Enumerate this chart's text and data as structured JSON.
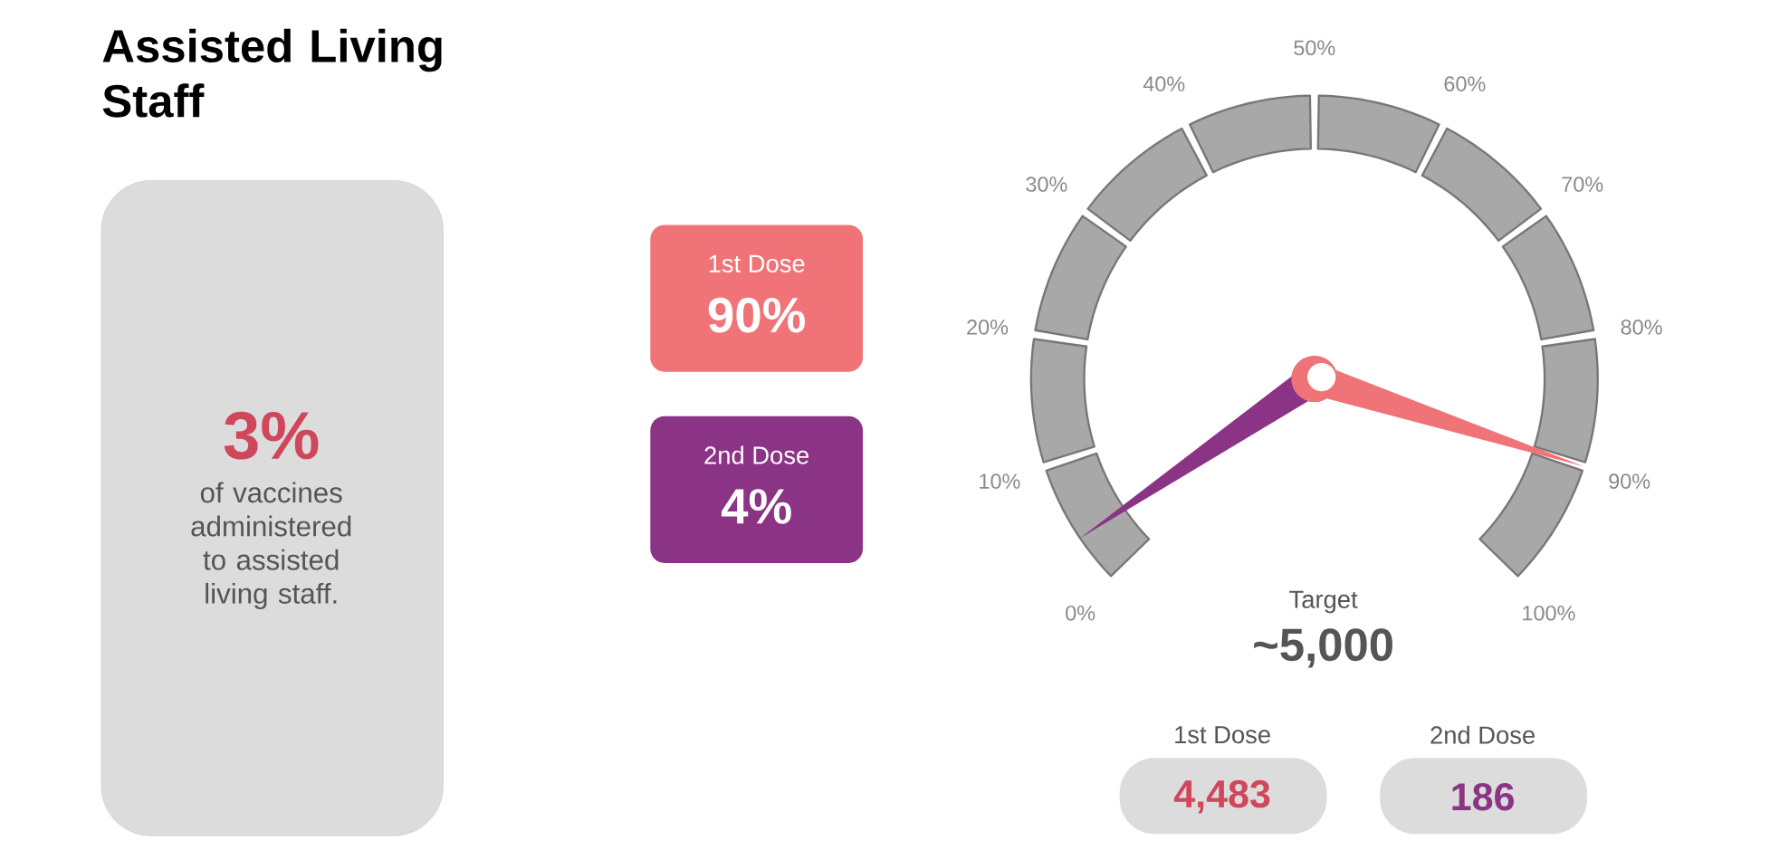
{
  "chart_data": {
    "type": "other",
    "title": "Assisted Living Staff",
    "annotations": [
      "3%",
      "of vaccines administered to assisted living staff.",
      "Target",
      "~5,000",
      "4,483",
      "186",
      "0%",
      "10%",
      "20%",
      "30%",
      "40%",
      "50%",
      "60%",
      "70%",
      "80%",
      "90%",
      "100%"
    ],
    "categories": [
      "1st Dose",
      "2nd Dose"
    ],
    "values": [
      90,
      4
    ],
    "value_labels": [
      "90%",
      "4%"
    ],
    "colors": [
      "#f07377",
      "#8b3384"
    ]
  }
}
